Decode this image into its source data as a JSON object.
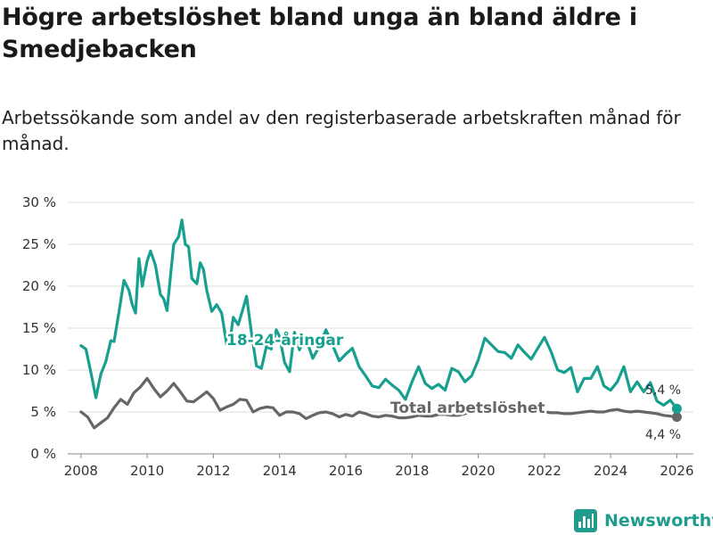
{
  "title": "Högre arbetslöshet bland unga än bland äldre i Smedjebacken",
  "subtitle": "Arbetssökande som andel av den registerbaserade arbetskraften månad för månad.",
  "brand": {
    "name": "Newsworthy",
    "icon": "bar-chart-logo-icon"
  },
  "colors": {
    "youth": "#17a08f",
    "total": "#666666",
    "grid": "#dddddd",
    "brand": "#1f9c8e"
  },
  "chart_data": {
    "type": "line",
    "title": "Högre arbetslöshet bland unga än bland äldre i Smedjebacken",
    "ylim": [
      0,
      30
    ],
    "xlim": [
      2007.6,
      2026.5
    ],
    "y_ticks": [
      0,
      5,
      10,
      15,
      20,
      25,
      30
    ],
    "y_tick_labels": [
      "0 %",
      "5 %",
      "10 %",
      "15 %",
      "20 %",
      "25 %",
      "30 %"
    ],
    "x_ticks": [
      2008,
      2010,
      2012,
      2014,
      2016,
      2018,
      2020,
      2022,
      2024,
      2026
    ],
    "x_tick_labels": [
      "2008",
      "2010",
      "2012",
      "2014",
      "2016",
      "2018",
      "2020",
      "2022",
      "2024",
      "2026"
    ],
    "grid": true,
    "series": [
      {
        "name": "18-24-åringar",
        "label": "18-24-åringar",
        "end_label": "5,4 %",
        "x": [
          2008.0,
          2008.15,
          2008.3,
          2008.45,
          2008.6,
          2008.75,
          2008.9,
          2009.0,
          2009.15,
          2009.3,
          2009.45,
          2009.55,
          2009.65,
          2009.75,
          2009.85,
          2010.0,
          2010.1,
          2010.25,
          2010.4,
          2010.5,
          2010.6,
          2010.7,
          2010.8,
          2010.95,
          2011.05,
          2011.15,
          2011.25,
          2011.35,
          2011.5,
          2011.6,
          2011.7,
          2011.8,
          2011.95,
          2012.1,
          2012.25,
          2012.4,
          2012.5,
          2012.6,
          2012.75,
          2012.9,
          2013.0,
          2013.15,
          2013.3,
          2013.45,
          2013.6,
          2013.75,
          2013.9,
          2014.0,
          2014.15,
          2014.3,
          2014.45,
          2014.6,
          2014.75,
          2014.9,
          2015.0,
          2015.2,
          2015.4,
          2015.6,
          2015.8,
          2016.0,
          2016.2,
          2016.4,
          2016.6,
          2016.8,
          2017.0,
          2017.2,
          2017.4,
          2017.6,
          2017.8,
          2018.0,
          2018.2,
          2018.4,
          2018.6,
          2018.8,
          2019.0,
          2019.2,
          2019.4,
          2019.6,
          2019.8,
          2020.0,
          2020.2,
          2020.4,
          2020.6,
          2020.8,
          2021.0,
          2021.2,
          2021.4,
          2021.6,
          2021.8,
          2022.0,
          2022.2,
          2022.4,
          2022.6,
          2022.8,
          2023.0,
          2023.2,
          2023.4,
          2023.6,
          2023.8,
          2024.0,
          2024.2,
          2024.4,
          2024.6,
          2024.8,
          2025.0,
          2025.2,
          2025.4,
          2025.6,
          2025.8,
          2026.0
        ],
        "values": [
          12.9,
          12.5,
          9.7,
          6.7,
          9.5,
          11.0,
          13.5,
          13.4,
          17.0,
          20.7,
          19.5,
          17.8,
          16.8,
          23.3,
          20.0,
          23.0,
          24.2,
          22.5,
          19.0,
          18.5,
          17.1,
          21.0,
          25.0,
          25.9,
          27.9,
          25.0,
          24.7,
          20.9,
          20.3,
          22.8,
          22.0,
          19.5,
          17.0,
          17.8,
          16.8,
          13.1,
          13.4,
          16.3,
          15.4,
          17.4,
          18.8,
          14.5,
          10.5,
          10.2,
          12.8,
          12.5,
          14.8,
          14.0,
          10.9,
          9.8,
          14.5,
          12.4,
          13.7,
          12.6,
          11.4,
          12.8,
          14.8,
          13.0,
          11.1,
          11.9,
          12.6,
          10.4,
          9.3,
          8.1,
          7.9,
          8.9,
          8.2,
          7.6,
          6.5,
          8.6,
          10.4,
          8.4,
          7.8,
          8.3,
          7.6,
          10.2,
          9.8,
          8.6,
          9.3,
          11.2,
          13.8,
          13.0,
          12.2,
          12.1,
          11.4,
          13.0,
          12.1,
          11.3,
          12.6,
          13.9,
          12.2,
          10.0,
          9.7,
          10.3,
          7.4,
          9.0,
          9.0,
          10.4,
          8.1,
          7.6,
          8.6,
          10.4,
          7.4,
          8.6,
          7.4,
          8.5,
          6.3,
          5.8,
          6.4,
          5.4
        ]
      },
      {
        "name": "Total arbetslöshet",
        "label": "Total arbetslöshet",
        "end_label": "4,4 %",
        "x": [
          2008.0,
          2008.2,
          2008.4,
          2008.6,
          2008.8,
          2009.0,
          2009.2,
          2009.4,
          2009.6,
          2009.8,
          2010.0,
          2010.2,
          2010.4,
          2010.6,
          2010.8,
          2011.0,
          2011.2,
          2011.4,
          2011.6,
          2011.8,
          2012.0,
          2012.2,
          2012.4,
          2012.6,
          2012.8,
          2013.0,
          2013.2,
          2013.4,
          2013.6,
          2013.8,
          2014.0,
          2014.2,
          2014.4,
          2014.6,
          2014.8,
          2015.0,
          2015.2,
          2015.4,
          2015.6,
          2015.8,
          2016.0,
          2016.2,
          2016.4,
          2016.6,
          2016.8,
          2017.0,
          2017.2,
          2017.4,
          2017.6,
          2017.8,
          2018.0,
          2018.2,
          2018.4,
          2018.6,
          2018.8,
          2019.0,
          2019.2,
          2019.4,
          2019.6,
          2019.8,
          2020.0,
          2020.2,
          2020.4,
          2020.6,
          2020.8,
          2021.0,
          2021.2,
          2021.4,
          2021.6,
          2021.8,
          2022.0,
          2022.2,
          2022.4,
          2022.6,
          2022.8,
          2023.0,
          2023.2,
          2023.4,
          2023.6,
          2023.8,
          2024.0,
          2024.2,
          2024.4,
          2024.6,
          2024.8,
          2025.0,
          2025.2,
          2025.4,
          2025.6,
          2025.8,
          2026.0
        ],
        "values": [
          5.0,
          4.4,
          3.1,
          3.7,
          4.3,
          5.5,
          6.5,
          5.9,
          7.3,
          8.0,
          9.0,
          7.8,
          6.8,
          7.5,
          8.4,
          7.4,
          6.3,
          6.2,
          6.8,
          7.4,
          6.6,
          5.2,
          5.6,
          5.9,
          6.5,
          6.4,
          5.0,
          5.4,
          5.6,
          5.5,
          4.6,
          5.0,
          5.0,
          4.8,
          4.2,
          4.6,
          4.9,
          5.0,
          4.8,
          4.4,
          4.7,
          4.5,
          5.0,
          4.8,
          4.5,
          4.4,
          4.6,
          4.5,
          4.3,
          4.3,
          4.4,
          4.6,
          4.5,
          4.5,
          4.7,
          4.7,
          4.6,
          4.6,
          4.8,
          5.0,
          5.2,
          5.5,
          5.4,
          5.5,
          5.7,
          5.8,
          5.6,
          5.4,
          5.2,
          5.1,
          5.0,
          4.9,
          4.9,
          4.8,
          4.8,
          4.9,
          5.0,
          5.1,
          5.0,
          5.0,
          5.2,
          5.3,
          5.1,
          5.0,
          5.1,
          5.0,
          4.9,
          4.8,
          4.6,
          4.5,
          4.4
        ]
      }
    ]
  }
}
